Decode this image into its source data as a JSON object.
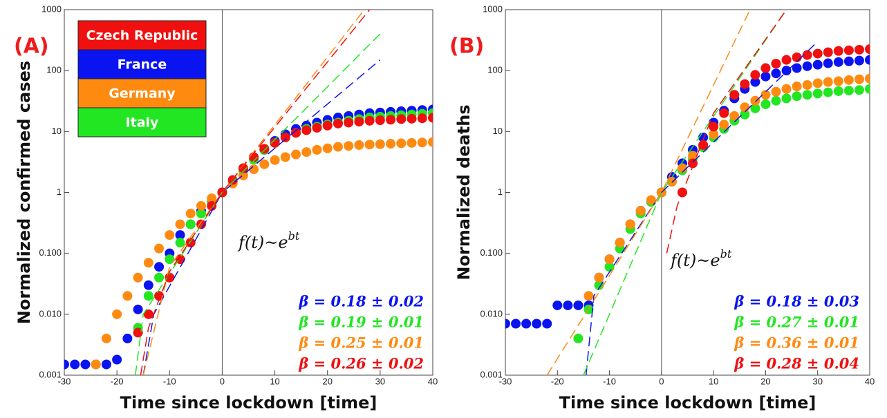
{
  "chart_data": [
    {
      "type": "scatter",
      "panel_label": "(A)",
      "ylabel": "Normalized confirmed cases",
      "xlabel": "Time since lockdown [time]",
      "xlim": [
        -30,
        40
      ],
      "ylim": [
        0.001,
        1000
      ],
      "xticks": [
        -30,
        -20,
        -10,
        0,
        10,
        20,
        30,
        40
      ],
      "yticks": [
        0.001,
        {
          "value": 0.01,
          "label": "0.010"
        },
        {
          "value": 0.1,
          "label": "0.100"
        },
        1,
        10,
        100,
        1000
      ],
      "log_y": true,
      "vline": 0,
      "legend": true,
      "legend_corner": "upper left",
      "series": [
        {
          "name": "France",
          "color": "#0a14f0",
          "x": [
            -30,
            -28,
            -26,
            -24,
            -22,
            -20,
            -18,
            -16,
            -14,
            -12,
            -10,
            -8,
            -6,
            -4,
            -2,
            0,
            2,
            4,
            6,
            8,
            10,
            12,
            14,
            16,
            18,
            20,
            22,
            24,
            26,
            28,
            30,
            32,
            34,
            36,
            38,
            40
          ],
          "values": [
            0.0015,
            0.0015,
            0.0015,
            0.0015,
            0.0015,
            0.0018,
            0.004,
            0.012,
            0.03,
            0.06,
            0.1,
            0.2,
            0.3,
            0.5,
            0.7,
            1,
            1.5,
            2.3,
            3.5,
            5,
            7,
            9,
            11,
            12.5,
            14,
            15.5,
            17,
            18,
            19,
            20,
            20.5,
            21,
            21.5,
            22,
            22.5,
            23
          ]
        },
        {
          "name": "Italy",
          "color": "#22e622",
          "x": [
            -16,
            -14,
            -12,
            -10,
            -8,
            -6,
            -4,
            -2,
            0,
            2,
            4,
            6,
            8,
            10,
            12,
            14,
            16,
            18,
            20,
            22,
            24,
            26,
            28,
            30,
            32,
            34,
            36,
            38,
            40
          ],
          "values": [
            0.006,
            0.02,
            0.04,
            0.08,
            0.15,
            0.3,
            0.45,
            0.7,
            1,
            1.5,
            2.3,
            3.5,
            5,
            6.5,
            8,
            9.5,
            11,
            12,
            13,
            14,
            15,
            16,
            17,
            17.5,
            18,
            18.5,
            19,
            19.5,
            20
          ]
        },
        {
          "name": "Germany",
          "color": "#ff8a10",
          "x": [
            -24,
            -22,
            -20,
            -18,
            -16,
            -14,
            -12,
            -10,
            -8,
            -6,
            -4,
            -2,
            0,
            2,
            4,
            6,
            8,
            10,
            12,
            14,
            16,
            18,
            20,
            22,
            24,
            26,
            28,
            30,
            32,
            34,
            36,
            38,
            40
          ],
          "values": [
            0.0015,
            0.004,
            0.01,
            0.02,
            0.04,
            0.07,
            0.12,
            0.2,
            0.3,
            0.45,
            0.6,
            0.8,
            1,
            1.4,
            1.9,
            2.4,
            2.9,
            3.4,
            3.8,
            4.2,
            4.6,
            5,
            5.3,
            5.6,
            5.8,
            6,
            6.1,
            6.2,
            6.3,
            6.4,
            6.5,
            6.6,
            6.7
          ]
        },
        {
          "name": "Czech Republic",
          "color": "#f01010",
          "x": [
            -16,
            -14,
            -12,
            -10,
            -8,
            -6,
            -4,
            -2,
            0,
            2,
            4,
            6,
            8,
            10,
            12,
            14,
            16,
            18,
            20,
            22,
            24,
            26,
            28,
            30,
            32,
            34,
            36,
            38,
            40
          ],
          "values": [
            0.005,
            0.01,
            0.02,
            0.04,
            0.08,
            0.15,
            0.3,
            0.6,
            1,
            1.6,
            2.5,
            3.8,
            5.2,
            6.5,
            8,
            9.5,
            10.5,
            11.5,
            12.5,
            13.5,
            14,
            14.5,
            15,
            15.3,
            15.6,
            16,
            16.2,
            16.5,
            16.8
          ]
        }
      ],
      "legend_order": [
        3,
        0,
        2,
        1
      ],
      "fits": [
        {
          "color": "#0a14f0",
          "x": [
            -15,
            -13,
            0,
            30
          ],
          "values": [
            0.001,
            0.01,
            1,
            150
          ]
        },
        {
          "color": "#22e622",
          "x": [
            -16.5,
            -15,
            0,
            30
          ],
          "values": [
            0.001,
            0.01,
            1,
            400
          ]
        },
        {
          "color": "#ff8a10",
          "x": [
            -15,
            -10,
            0,
            27
          ],
          "values": [
            0.001,
            0.06,
            1,
            1000
          ]
        },
        {
          "color": "#f01010",
          "x": [
            -15.5,
            -14,
            -10,
            0,
            28
          ],
          "values": [
            0.001,
            0.006,
            0.05,
            1,
            1000
          ]
        }
      ],
      "formula": {
        "base": "f(t)~e",
        "exponent": "bt"
      },
      "betas": [
        {
          "text": "β = 0.18 ± 0.02",
          "color": "#0a14f0"
        },
        {
          "text": "β = 0.19 ± 0.01",
          "color": "#22e622"
        },
        {
          "text": "β = 0.25 ± 0.01",
          "color": "#ff8a10"
        },
        {
          "text": "β = 0.26 ± 0.02",
          "color": "#f01010"
        }
      ]
    },
    {
      "type": "scatter",
      "panel_label": "(B)",
      "ylabel": "Normalized deaths",
      "xlabel": "Time since lockdown [time]",
      "xlim": [
        -30,
        40
      ],
      "ylim": [
        0.001,
        1000
      ],
      "xticks": [
        -30,
        -20,
        -10,
        0,
        10,
        20,
        30,
        40
      ],
      "yticks": [
        0.001,
        {
          "value": 0.01,
          "label": "0.010"
        },
        {
          "value": 0.1,
          "label": "0.100"
        },
        1,
        10,
        100,
        1000
      ],
      "log_y": true,
      "vline": 0,
      "legend": false,
      "series": [
        {
          "color": "#0a14f0",
          "x": [
            -30,
            -28,
            -26,
            -24,
            -22,
            -20,
            -18,
            -16,
            -14,
            -12,
            -10,
            -8,
            -6,
            -4,
            -2,
            0,
            2,
            4,
            6,
            8,
            10,
            12,
            14,
            16,
            18,
            20,
            22,
            24,
            26,
            28,
            30,
            32,
            34,
            36,
            38,
            40
          ],
          "values": [
            0.007,
            0.007,
            0.007,
            0.007,
            0.007,
            0.014,
            0.014,
            0.014,
            0.014,
            0.04,
            0.08,
            0.15,
            0.3,
            0.5,
            0.7,
            1,
            1.8,
            3,
            5,
            8,
            14,
            22,
            35,
            50,
            65,
            80,
            90,
            100,
            110,
            118,
            125,
            132,
            138,
            142,
            146,
            150
          ]
        },
        {
          "color": "#22e622",
          "x": [
            -16,
            -14,
            -12,
            -10,
            -8,
            -6,
            -4,
            -2,
            0,
            2,
            4,
            6,
            8,
            10,
            12,
            14,
            16,
            18,
            20,
            22,
            24,
            26,
            28,
            30,
            32,
            34,
            36,
            38,
            40
          ],
          "values": [
            0.004,
            0.012,
            0.03,
            0.06,
            0.12,
            0.25,
            0.45,
            0.7,
            1,
            1.5,
            2.3,
            3.5,
            5.5,
            8,
            11,
            15,
            19,
            24,
            28,
            32,
            35,
            38,
            40,
            42,
            44,
            46,
            47,
            48,
            50
          ]
        },
        {
          "color": "#ff8a10",
          "x": [
            -14,
            -12,
            -10,
            -8,
            -6,
            -4,
            -2,
            0,
            2,
            4,
            6,
            8,
            10,
            12,
            14,
            16,
            18,
            20,
            22,
            24,
            26,
            28,
            30,
            32,
            34,
            36,
            38,
            40
          ],
          "values": [
            0.02,
            0.04,
            0.08,
            0.15,
            0.3,
            0.5,
            0.75,
            1,
            1.5,
            2.5,
            4,
            6,
            9,
            13,
            18,
            25,
            32,
            40,
            45,
            50,
            55,
            58,
            62,
            65,
            67,
            70,
            72,
            74
          ]
        },
        {
          "color": "#f01010",
          "x": [
            4,
            6,
            8,
            10,
            12,
            14,
            16,
            18,
            20,
            22,
            24,
            26,
            28,
            30,
            32,
            34,
            36,
            38,
            40
          ],
          "values": [
            1,
            3,
            6,
            12,
            20,
            40,
            60,
            85,
            110,
            130,
            150,
            165,
            180,
            190,
            200,
            210,
            215,
            220,
            225
          ]
        }
      ],
      "fits": [
        {
          "color": "#0a14f0",
          "x": [
            -14.5,
            -13,
            0,
            30
          ],
          "values": [
            0.001,
            0.02,
            1,
            300
          ]
        },
        {
          "color": "#22e622",
          "x": [
            -15,
            0,
            24
          ],
          "values": [
            0.001,
            1,
            1000
          ]
        },
        {
          "color": "#ff8a10",
          "x": [
            -22,
            0,
            17
          ],
          "values": [
            0.001,
            1,
            1000
          ]
        },
        {
          "color": "#f01010",
          "x": [
            1,
            3,
            10,
            24
          ],
          "values": [
            0.1,
            0.6,
            20,
            1000
          ]
        }
      ],
      "formula": {
        "base": "f(t)~e",
        "exponent": "bt"
      },
      "betas": [
        {
          "text": "β = 0.18 ± 0.03",
          "color": "#0a14f0"
        },
        {
          "text": "β = 0.27 ± 0.01",
          "color": "#22e622"
        },
        {
          "text": "β = 0.36 ± 0.01",
          "color": "#ff8a10"
        },
        {
          "text": "β = 0.28 ± 0.04",
          "color": "#f01010"
        }
      ]
    }
  ]
}
